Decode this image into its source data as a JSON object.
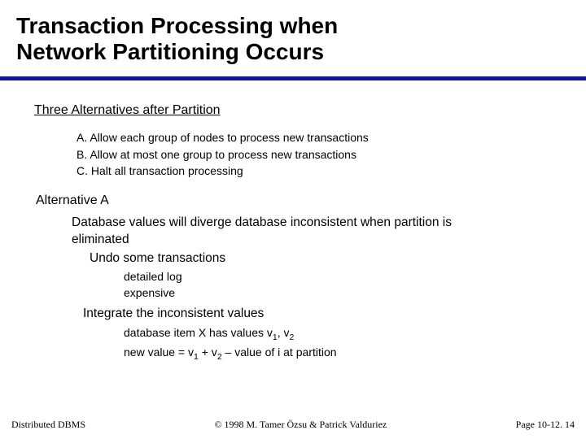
{
  "title": {
    "line1": "Transaction Processing when",
    "line2": "Network Partitioning Occurs"
  },
  "section1": {
    "heading": "Three Alternatives after Partition",
    "items": [
      "A. Allow each group of nodes to process new transactions",
      "B. Allow at most one group to process new transactions",
      "C. Halt all transaction processing"
    ]
  },
  "section2": {
    "heading": "Alternative A",
    "para1": "Database values will diverge database inconsistent when partition is",
    "para2": "eliminated",
    "undo": "Undo some transactions",
    "undo_sub": [
      "detailed log",
      "expensive"
    ],
    "integrate": "Integrate the inconsistent values",
    "int_sub_prefix1": "database item X has values v",
    "int_sub1_mid": ", v",
    "int_sub2_prefix": "new value = v",
    "int_sub2_mid": " + v",
    "int_sub2_suffix": " – value of i at partition"
  },
  "footer": {
    "left": "Distributed DBMS",
    "center": "© 1998 M. Tamer Özsu & Patrick Valduriez",
    "right": "Page 10-12. 14"
  },
  "colors": {
    "rule": "#14149c",
    "text": "#000000",
    "background": "#ffffff"
  }
}
